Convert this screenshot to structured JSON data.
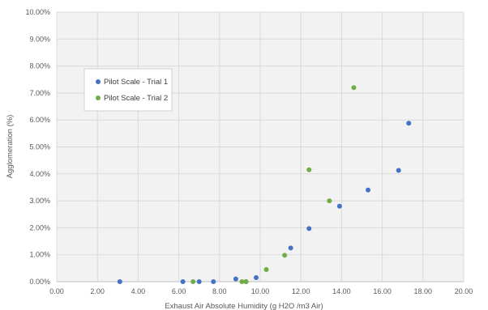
{
  "chart_data": {
    "type": "scatter",
    "xlabel": "Exhaust Air Absolute Humidity (g H2O /m3 Air)",
    "ylabel": "Agglomeration (%)",
    "xlim": [
      0,
      20
    ],
    "ylim": [
      0,
      10
    ],
    "x_ticks": [
      0,
      2,
      4,
      6,
      8,
      10,
      12,
      14,
      16,
      18,
      20
    ],
    "y_ticks": [
      0,
      1,
      2,
      3,
      4,
      5,
      6,
      7,
      8,
      9,
      10
    ],
    "x_tick_labels": [
      "0.00",
      "2.00",
      "4.00",
      "6.00",
      "8.00",
      "10.00",
      "12.00",
      "14.00",
      "16.00",
      "18.00",
      "20.00"
    ],
    "y_tick_labels": [
      "0.00%",
      "1.00%",
      "2.00%",
      "3.00%",
      "4.00%",
      "5.00%",
      "6.00%",
      "7.00%",
      "8.00%",
      "9.00%",
      "10.00%"
    ],
    "grid": true,
    "legend_position": "left",
    "series": [
      {
        "name": "Pilot Scale - Trial 1",
        "color": "#4472C4",
        "points": [
          [
            3.1,
            0.0
          ],
          [
            6.2,
            0.0
          ],
          [
            7.0,
            0.0
          ],
          [
            7.7,
            0.0
          ],
          [
            8.8,
            0.1
          ],
          [
            9.3,
            0.0
          ],
          [
            9.8,
            0.15
          ],
          [
            11.5,
            1.25
          ],
          [
            12.4,
            1.97
          ],
          [
            13.9,
            2.8
          ],
          [
            15.3,
            3.4
          ],
          [
            16.8,
            4.13
          ],
          [
            17.3,
            5.88
          ]
        ]
      },
      {
        "name": "Pilot Scale - Trial 2",
        "color": "#70AD47",
        "points": [
          [
            6.7,
            0.0
          ],
          [
            9.1,
            0.0
          ],
          [
            9.3,
            0.0
          ],
          [
            10.3,
            0.45
          ],
          [
            11.2,
            0.98
          ],
          [
            12.4,
            4.15
          ],
          [
            13.4,
            3.0
          ],
          [
            14.6,
            7.2
          ]
        ]
      }
    ]
  }
}
